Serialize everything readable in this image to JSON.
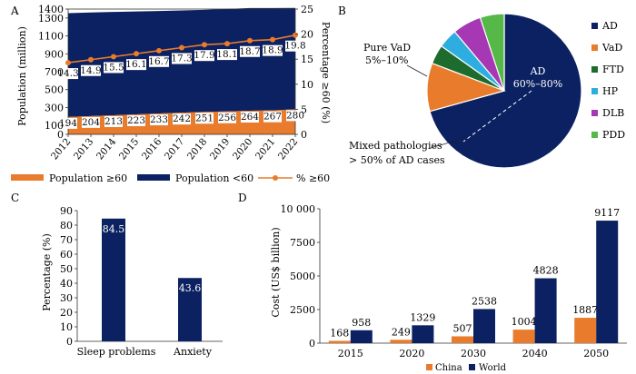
{
  "panels": [
    {
      "letter": "A",
      "chart_data": {
        "type": "area",
        "categories": [
          "2012",
          "2013",
          "2014",
          "2015",
          "2016",
          "2017",
          "2018",
          "2019",
          "2020",
          "2021",
          "2022"
        ],
        "series": [
          {
            "name": "Population ≥60",
            "kind": "area",
            "color": "#e87c2c",
            "values": [
              194,
              204,
              213,
              223,
              233,
              242,
              251,
              256,
              264,
              267,
              280
            ]
          },
          {
            "name": "Population <60",
            "kind": "area",
            "color": "#0b2161",
            "values": [
              1160,
              1158,
              1155,
              1151,
              1146,
              1143,
              1140,
              1145,
              1148,
              1145,
              1133
            ]
          },
          {
            "name": "% ≥60",
            "kind": "line",
            "axis": "right",
            "color": "#e87c2c",
            "values": [
              14.3,
              14.9,
              15.5,
              16.1,
              16.7,
              17.3,
              17.9,
              18.1,
              18.7,
              18.9,
              19.8
            ]
          }
        ],
        "ylabel": "Population (million)",
        "ylim": [
          0,
          1400
        ],
        "yticks": [
          "0",
          "100",
          "300",
          "500",
          "700",
          "900",
          "1100",
          "1300",
          "1400"
        ],
        "y2label": "Percentage ≥60 (%)",
        "y2lim": [
          0,
          25
        ],
        "y2ticks": [
          "0",
          "5",
          "10",
          "15",
          "20",
          "25"
        ],
        "bar_labels": [
          "194",
          "204",
          "213",
          "223",
          "233",
          "242",
          "251",
          "256",
          "264",
          "267",
          "280"
        ],
        "line_labels": [
          "14.3",
          "14.9",
          "15.5",
          "16.1",
          "16.7",
          "17.3",
          "17.9",
          "18.1",
          "18.7",
          "18.9",
          "19.8"
        ],
        "legend": [
          "Population ≥60",
          "Population <60",
          "% ≥60"
        ]
      }
    },
    {
      "letter": "B",
      "chart_data": {
        "type": "pie",
        "slices": [
          {
            "name": "AD",
            "value": 70,
            "color": "#0b2161"
          },
          {
            "name": "VaD",
            "value": 10,
            "color": "#e87c2c"
          },
          {
            "name": "FTD",
            "value": 4,
            "color": "#1e6b2e"
          },
          {
            "name": "HP",
            "value": 4,
            "color": "#2eaee0"
          },
          {
            "name": "DLB",
            "value": 6,
            "color": "#a638b4"
          },
          {
            "name": "PDD",
            "value": 5,
            "color": "#56b848"
          }
        ],
        "annotations": {
          "ad_name": "AD",
          "ad_range": "60%–80%",
          "vad_name": "Pure VaD",
          "vad_range": "5%–10%",
          "mixed_line1": "Mixed pathologies",
          "mixed_line2": "> 50% of AD cases"
        },
        "legend": [
          "AD",
          "VaD",
          "FTD",
          "HP",
          "DLB",
          "PDD"
        ]
      }
    },
    {
      "letter": "C",
      "chart_data": {
        "type": "bar",
        "categories": [
          "Sleep problems",
          "Anxiety"
        ],
        "values": [
          84.5,
          43.6
        ],
        "value_labels": [
          "84.5",
          "43.6"
        ],
        "color": "#0b2161",
        "ylabel": "Percentage (%)",
        "ylim": [
          0,
          90
        ],
        "yticks": [
          "0",
          "10",
          "20",
          "30",
          "40",
          "50",
          "60",
          "70",
          "80",
          "90"
        ]
      }
    },
    {
      "letter": "D",
      "chart_data": {
        "type": "bar",
        "categories": [
          "2015",
          "2020",
          "2030",
          "2040",
          "2050"
        ],
        "series": [
          {
            "name": "China",
            "color": "#e87c2c",
            "values": [
              168,
              249,
              507,
              1004,
              1887
            ],
            "labels": [
              "168",
              "249",
              "507",
              "1004",
              "1887"
            ]
          },
          {
            "name": "World",
            "color": "#0b2161",
            "values": [
              958,
              1329,
              2538,
              4828,
              9117
            ],
            "labels": [
              "958",
              "1329",
              "2538",
              "4828",
              "9117"
            ]
          }
        ],
        "ylabel": "Cost (US$ billion)",
        "ylim": [
          0,
          10000
        ],
        "yticks": [
          "0",
          "2500",
          "5000",
          "7500",
          "10 000"
        ],
        "legend": [
          "China",
          "World"
        ]
      }
    }
  ]
}
